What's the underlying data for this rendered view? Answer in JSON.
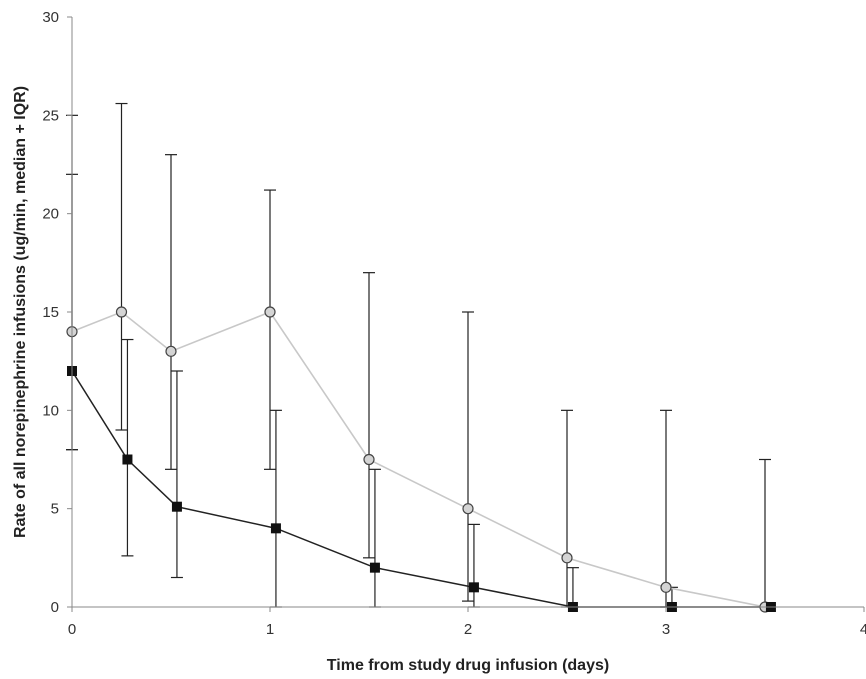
{
  "chart_data": {
    "type": "line",
    "title": "",
    "xlabel": "Time from study drug infusion (days)",
    "ylabel": "Rate of all norepinephrine infusions (ug/min, median + IQR)",
    "xlim": [
      0,
      4
    ],
    "ylim": [
      0,
      30
    ],
    "x_ticks": [
      0,
      1,
      2,
      3,
      4
    ],
    "y_ticks": [
      0,
      5,
      10,
      15,
      20,
      25,
      30
    ],
    "x_tick_labels": [
      "0",
      "1",
      "2",
      "3",
      "4"
    ],
    "y_tick_labels": [
      "0",
      "5",
      "10",
      "15",
      "20",
      "25",
      "30"
    ],
    "grid": false,
    "legend": "none",
    "series": [
      {
        "marker": "circle",
        "line_color": "#c8c8c8",
        "marker_fill": "#d4d4d4",
        "marker_edge": "#444444",
        "points": [
          {
            "x": 0,
            "y": 14,
            "low": 8,
            "high": 22
          },
          {
            "x": 0.25,
            "y": 15,
            "low": 9,
            "high": 25.6
          },
          {
            "x": 0.5,
            "y": 13,
            "low": 7,
            "high": 23
          },
          {
            "x": 1,
            "y": 15,
            "low": 7,
            "high": 21.2
          },
          {
            "x": 1.5,
            "y": 7.5,
            "low": 2.5,
            "high": 17
          },
          {
            "x": 2,
            "y": 5,
            "low": 0.3,
            "high": 15
          },
          {
            "x": 2.5,
            "y": 2.5,
            "low": 0,
            "high": 10
          },
          {
            "x": 3,
            "y": 1,
            "low": 0,
            "high": 10
          },
          {
            "x": 3.5,
            "y": 0,
            "low": 0,
            "high": 7.5
          }
        ]
      },
      {
        "marker": "square",
        "line_color": "#222222",
        "marker_fill": "#111111",
        "marker_edge": "#111111",
        "points": [
          {
            "x": 0,
            "y": 12,
            "low": 8,
            "high": 25
          },
          {
            "x": 0.28,
            "y": 7.5,
            "low": 2.6,
            "high": 13.6
          },
          {
            "x": 0.53,
            "y": 5.1,
            "low": 1.5,
            "high": 12
          },
          {
            "x": 1.03,
            "y": 4,
            "low": 0,
            "high": 10
          },
          {
            "x": 1.53,
            "y": 2,
            "low": 0,
            "high": 7
          },
          {
            "x": 2.03,
            "y": 1,
            "low": 0,
            "high": 4.2
          },
          {
            "x": 2.53,
            "y": 0,
            "low": 0,
            "high": 2
          },
          {
            "x": 3.03,
            "y": 0,
            "low": 0,
            "high": 1
          },
          {
            "x": 3.53,
            "y": 0,
            "low": 0,
            "high": 0
          }
        ]
      }
    ]
  }
}
